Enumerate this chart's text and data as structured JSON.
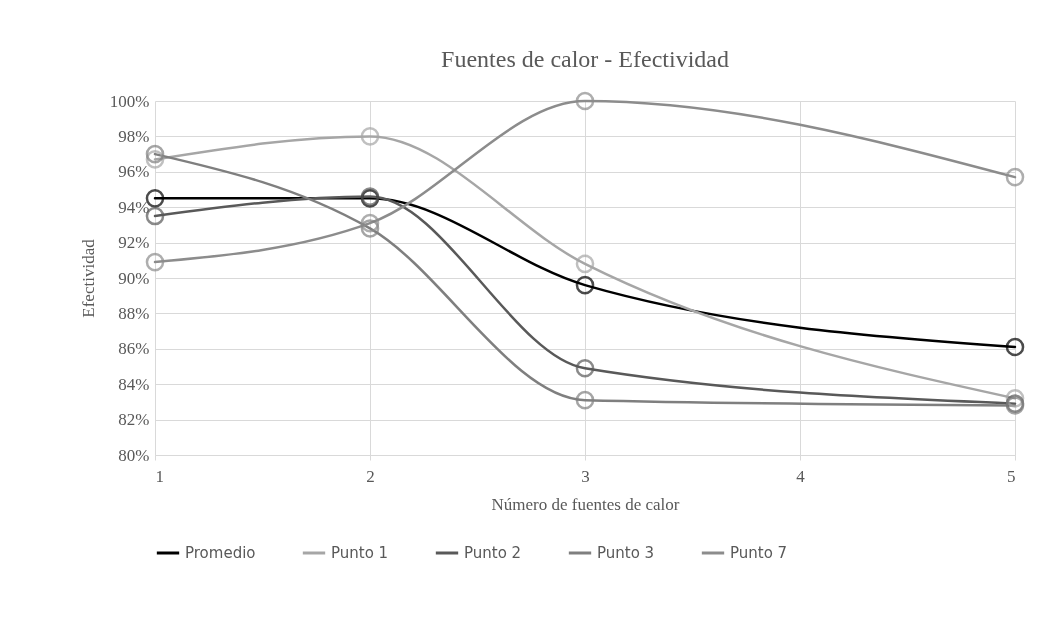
{
  "chart_data": {
    "type": "line",
    "title": "Fuentes de calor - Efectividad",
    "xlabel": "Número de fuentes de calor",
    "ylabel": "Efectividad",
    "x": [
      1,
      2,
      3,
      5
    ],
    "series": [
      {
        "name": "Promedio",
        "color": "#000000",
        "values": [
          94.5,
          94.5,
          89.6,
          86.1
        ]
      },
      {
        "name": "Punto 1",
        "color": "#a6a6a6",
        "values": [
          96.7,
          98.0,
          90.8,
          83.2
        ]
      },
      {
        "name": "Punto 2",
        "color": "#595959",
        "values": [
          93.5,
          94.6,
          84.9,
          82.9
        ]
      },
      {
        "name": "Punto 3",
        "color": "#7f7f7f",
        "values": [
          97.0,
          92.8,
          83.1,
          82.8
        ]
      },
      {
        "name": "Punto 7",
        "color": "#8c8c8c",
        "values": [
          90.9,
          93.1,
          100.0,
          95.7
        ]
      }
    ],
    "xlim": [
      1,
      5
    ],
    "xticks": [
      1,
      2,
      3,
      4,
      5
    ],
    "ylim": [
      80,
      100
    ],
    "yticks": [
      {
        "value": 80,
        "label": "80%"
      },
      {
        "value": 82,
        "label": "82%"
      },
      {
        "value": 84,
        "label": "84%"
      },
      {
        "value": 86,
        "label": "86%"
      },
      {
        "value": 88,
        "label": "88%"
      },
      {
        "value": 90,
        "label": "90%"
      },
      {
        "value": 92,
        "label": "92%"
      },
      {
        "value": 94,
        "label": "94%"
      },
      {
        "value": 96,
        "label": "96%"
      },
      {
        "value": 98,
        "label": "98%"
      },
      {
        "value": 100,
        "label": "100%"
      }
    ],
    "grid": true,
    "legend": "bottom",
    "marker": "circle",
    "line_style": "solid"
  }
}
